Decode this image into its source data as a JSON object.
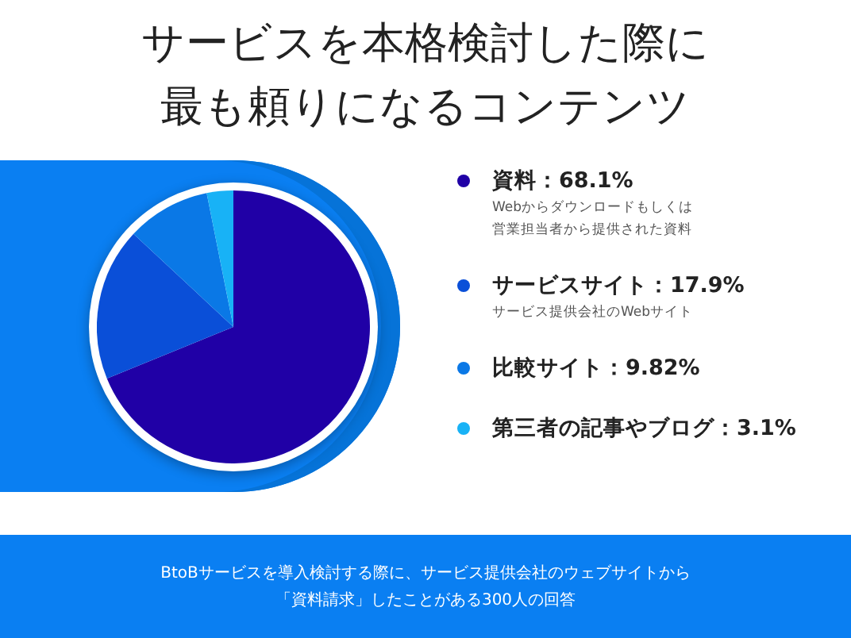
{
  "chart_data": {
    "type": "pie",
    "title": "サービスを本格検討した際に最も頼りになるコンテンツ",
    "categories": [
      "資料",
      "サービスサイト",
      "比較サイト",
      "第三者の記事やブログ"
    ],
    "values": [
      68.1,
      17.9,
      9.82,
      3.1
    ],
    "value_labels": [
      "68.1%",
      "17.9%",
      "9.82%",
      "3.1%"
    ],
    "colors": [
      "#2000a6",
      "#0a4fd8",
      "#0a78e6",
      "#18b2f6"
    ],
    "legend": "right",
    "annotations": [
      "Webからダウンロードもしくは営業担当者から提供された資料",
      "サービス提供会社のWebサイト",
      "BtoBサービスを導入検討する際に、サービス提供会社のウェブサイトから「資料請求」したことがある300人の回答"
    ]
  }
}
